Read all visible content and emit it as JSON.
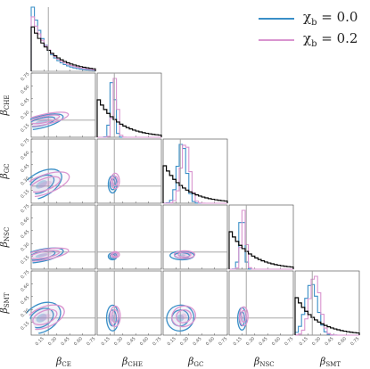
{
  "legend": {
    "items": [
      {
        "label": "χb = 0.0",
        "label_main": "χ",
        "label_sub": "b",
        "label_value": " = 0.0",
        "color": "#3a8fc7"
      },
      {
        "label": "χb = 0.2",
        "label_main": "χ",
        "label_sub": "b",
        "label_value": " = 0.2",
        "color": "#d994cf"
      }
    ]
  },
  "chart_data": {
    "type": "corner",
    "parameters": [
      {
        "name": "β_CE",
        "symbol": "β",
        "subscript": "CE"
      },
      {
        "name": "β_CHE",
        "symbol": "β",
        "subscript": "CHE"
      },
      {
        "name": "β_GC",
        "symbol": "β",
        "subscript": "GC"
      },
      {
        "name": "β_NSC",
        "symbol": "β",
        "subscript": "NSC"
      },
      {
        "name": "β_SMT",
        "symbol": "β",
        "subscript": "SMT"
      }
    ],
    "axis_range": [
      0,
      0.75
    ],
    "x_ticks": [
      "0.15",
      "0.30",
      "0.45",
      "0.60",
      "0.75"
    ],
    "y_ticks": [
      "0.75",
      "0.60",
      "0.45",
      "0.30",
      "0.15"
    ],
    "truth_values": [
      0.2,
      0.2,
      0.2,
      0.2,
      0.2
    ],
    "prior": {
      "color": "#000000",
      "density_rate": 4
    },
    "series": [
      {
        "name": "χb = 0.0",
        "color": "#3a8fc7",
        "marginals": [
          {
            "kind": "decay",
            "rate": 6.0
          },
          {
            "kind": "peak",
            "mean": 0.18,
            "sd": 0.025
          },
          {
            "kind": "peak",
            "mean": 0.22,
            "sd": 0.05
          },
          {
            "kind": "peak",
            "mean": 0.15,
            "sd": 0.025
          },
          {
            "kind": "peak",
            "mean": 0.19,
            "sd": 0.07
          }
        ],
        "contours": [
          {
            "row": 1,
            "col": 0,
            "cx": 0.12,
            "cy": 0.18,
            "sx": 0.26,
            "sy": 0.07,
            "rot": -14
          },
          {
            "row": 2,
            "col": 0,
            "cx": 0.12,
            "cy": 0.22,
            "sx": 0.26,
            "sy": 0.14,
            "rot": -30
          },
          {
            "row": 2,
            "col": 1,
            "cx": 0.18,
            "cy": 0.22,
            "sx": 0.05,
            "sy": 0.1,
            "rot": 0
          },
          {
            "row": 3,
            "col": 0,
            "cx": 0.12,
            "cy": 0.16,
            "sx": 0.26,
            "sy": 0.07,
            "rot": -12
          },
          {
            "row": 3,
            "col": 1,
            "cx": 0.18,
            "cy": 0.15,
            "sx": 0.05,
            "sy": 0.04,
            "rot": 0
          },
          {
            "row": 3,
            "col": 2,
            "cx": 0.22,
            "cy": 0.16,
            "sx": 0.14,
            "sy": 0.05,
            "rot": 0
          },
          {
            "row": 4,
            "col": 0,
            "cx": 0.12,
            "cy": 0.2,
            "sx": 0.24,
            "sy": 0.16,
            "rot": -30
          },
          {
            "row": 4,
            "col": 1,
            "cx": 0.18,
            "cy": 0.2,
            "sx": 0.07,
            "sy": 0.15,
            "rot": 0
          },
          {
            "row": 4,
            "col": 2,
            "cx": 0.2,
            "cy": 0.2,
            "sx": 0.16,
            "sy": 0.15,
            "rot": -22
          },
          {
            "row": 4,
            "col": 3,
            "cx": 0.15,
            "cy": 0.19,
            "sx": 0.05,
            "sy": 0.13,
            "rot": 0
          }
        ]
      },
      {
        "name": "χb = 0.2",
        "color": "#d994cf",
        "marginals": [
          {
            "kind": "decay",
            "rate": 5.0
          },
          {
            "kind": "peak",
            "mean": 0.21,
            "sd": 0.025
          },
          {
            "kind": "peak",
            "mean": 0.26,
            "sd": 0.05
          },
          {
            "kind": "peak",
            "mean": 0.17,
            "sd": 0.025
          },
          {
            "kind": "peak",
            "mean": 0.23,
            "sd": 0.06
          }
        ],
        "contours": [
          {
            "row": 1,
            "col": 0,
            "cx": 0.16,
            "cy": 0.21,
            "sx": 0.28,
            "sy": 0.06,
            "rot": -12
          },
          {
            "row": 2,
            "col": 0,
            "cx": 0.16,
            "cy": 0.22,
            "sx": 0.3,
            "sy": 0.11,
            "rot": -20
          },
          {
            "row": 2,
            "col": 1,
            "cx": 0.21,
            "cy": 0.26,
            "sx": 0.05,
            "sy": 0.09,
            "rot": 0
          },
          {
            "row": 3,
            "col": 0,
            "cx": 0.16,
            "cy": 0.17,
            "sx": 0.28,
            "sy": 0.06,
            "rot": -10
          },
          {
            "row": 3,
            "col": 1,
            "cx": 0.21,
            "cy": 0.17,
            "sx": 0.05,
            "sy": 0.035,
            "rot": 0
          },
          {
            "row": 3,
            "col": 2,
            "cx": 0.25,
            "cy": 0.17,
            "sx": 0.12,
            "sy": 0.045,
            "rot": 0
          },
          {
            "row": 4,
            "col": 0,
            "cx": 0.16,
            "cy": 0.21,
            "sx": 0.24,
            "sy": 0.12,
            "rot": -22
          },
          {
            "row": 4,
            "col": 1,
            "cx": 0.21,
            "cy": 0.22,
            "sx": 0.06,
            "sy": 0.12,
            "rot": 0
          },
          {
            "row": 4,
            "col": 2,
            "cx": 0.24,
            "cy": 0.22,
            "sx": 0.14,
            "sy": 0.12,
            "rot": -15
          },
          {
            "row": 4,
            "col": 3,
            "cx": 0.17,
            "cy": 0.22,
            "sx": 0.05,
            "sy": 0.11,
            "rot": 0
          }
        ]
      }
    ]
  }
}
